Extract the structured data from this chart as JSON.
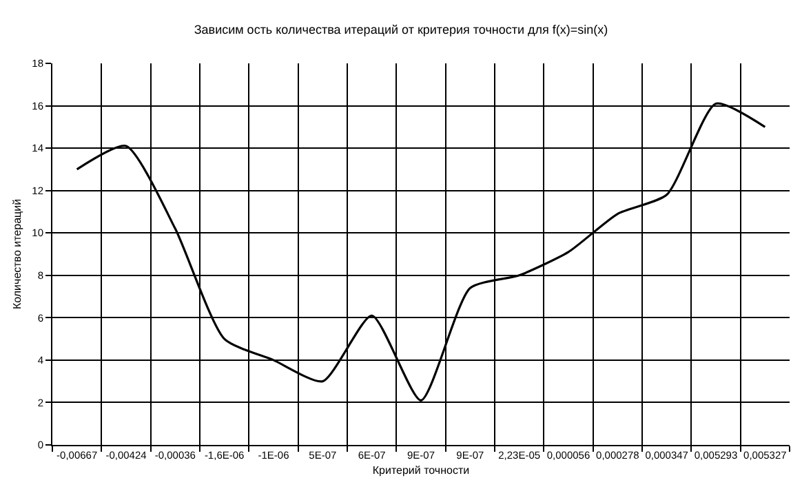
{
  "chart_data": {
    "type": "line",
    "title": "Зависим ость количества итераций от критерия точности для f(x)=sin(x)",
    "xlabel": "Критерий точности",
    "ylabel": "Количество итераций",
    "categories": [
      "-0,00667",
      "-0,00424",
      "-0,00036",
      "-1,6E-06",
      "-1E-06",
      "5E-07",
      "6E-07",
      "9E-07",
      "9E-07",
      "2,23E-05",
      "0,000056",
      "0,000278",
      "0,000347",
      "0,005293",
      "0,005327"
    ],
    "series": [
      {
        "color": "#000000",
        "values": [
          13,
          14.1,
          10.2,
          5,
          4,
          3,
          6.1,
          2.1,
          7.4,
          8,
          9.1,
          10.9,
          11.8,
          16.1,
          15
        ]
      }
    ],
    "ylim": [
      0,
      18
    ],
    "yticks": [
      0,
      2,
      4,
      6,
      8,
      10,
      12,
      14,
      16,
      18
    ],
    "grid": true,
    "legend": false,
    "marker": "none",
    "line_style": "solid"
  }
}
